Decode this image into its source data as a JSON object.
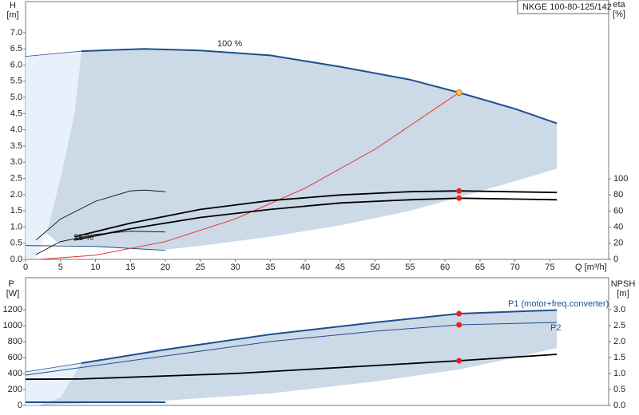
{
  "chart_data": [
    {
      "type": "line",
      "title": "NKGE 100-80-125/142",
      "y_label": "H",
      "y_unit": "[m]",
      "y2_label": "eta",
      "y2_unit": "[%]",
      "x_label": "Q [m³/h]",
      "annotations": [
        "100 %",
        "25 %"
      ],
      "xlim": [
        0,
        83.4
      ],
      "xticks": [
        0,
        5,
        10,
        15,
        20,
        25,
        30,
        35,
        40,
        45,
        50,
        55,
        60,
        65,
        70,
        75
      ],
      "ylim": [
        0,
        7.96
      ],
      "yticks": [
        {
          "value": 0,
          "label": "0.0"
        },
        {
          "value": 0.5,
          "label": "0.5"
        },
        {
          "value": 1,
          "label": "1.0"
        },
        {
          "value": 1.5,
          "label": "1.5"
        },
        {
          "value": 2,
          "label": "2.0"
        },
        {
          "value": 2.5,
          "label": "2.5"
        },
        {
          "value": 3,
          "label": "3.0"
        },
        {
          "value": 3.5,
          "label": "3.5"
        },
        {
          "value": 4,
          "label": "4.0"
        },
        {
          "value": 4.5,
          "label": "4.5"
        },
        {
          "value": 5,
          "label": "5.0"
        },
        {
          "value": 5.5,
          "label": "5.5"
        },
        {
          "value": 6,
          "label": "6.0"
        },
        {
          "value": 6.5,
          "label": "6.5"
        },
        {
          "value": 7,
          "label": "7.0"
        }
      ],
      "y2lim": [
        0,
        320
      ],
      "y2ticks": [
        0,
        20,
        40,
        60,
        80,
        100
      ],
      "series": [
        {
          "kind": "area",
          "color": "#e8f1fb",
          "x": [
            0,
            8,
            7,
            5,
            3,
            1.5,
            0
          ],
          "values": [
            6.27,
            6.43,
            4.5,
            2.5,
            0.8,
            0.05,
            0
          ]
        },
        {
          "kind": "area",
          "color": "#ccd9e6",
          "x": [
            8,
            17,
            25,
            35,
            45,
            55,
            62,
            70,
            76,
            76,
            65,
            55,
            45,
            35,
            25,
            20,
            10,
            5,
            3,
            5,
            7
          ],
          "values": [
            6.43,
            6.5,
            6.45,
            6.3,
            5.95,
            5.55,
            5.15,
            4.65,
            4.2,
            2.8,
            2.1,
            1.5,
            1.05,
            0.7,
            0.42,
            0.3,
            0.4,
            0.45,
            0.8,
            2.5,
            4.5
          ]
        },
        {
          "kind": "line",
          "color": "#1f4f8f",
          "width": 0.8,
          "x": [
            0,
            8
          ],
          "values": [
            6.27,
            6.43
          ]
        },
        {
          "kind": "line",
          "color": "#1f4f8f",
          "width": 2,
          "x": [
            8,
            17,
            25,
            35,
            45,
            55,
            62,
            70,
            76
          ],
          "values": [
            6.43,
            6.5,
            6.45,
            6.3,
            5.95,
            5.55,
            5.15,
            4.65,
            4.2
          ]
        },
        {
          "kind": "line",
          "color": "#1f4f8f",
          "width": 1,
          "x": [
            0,
            10,
            20
          ],
          "values": [
            0.43,
            0.4,
            0.28
          ]
        },
        {
          "kind": "line",
          "color": "#e83030",
          "width": 1,
          "x": [
            2,
            10,
            20,
            30,
            40,
            50,
            62
          ],
          "values": [
            0,
            0.13,
            0.55,
            1.25,
            2.2,
            3.4,
            5.15
          ]
        },
        {
          "kind": "line",
          "color": "#000000",
          "width": 0.8,
          "axis": "y2",
          "x": [
            1.5,
            5,
            10,
            15,
            17,
            20
          ],
          "values": [
            24,
            50,
            72,
            85,
            86,
            84
          ]
        },
        {
          "kind": "line",
          "color": "#000000",
          "width": 0.8,
          "axis": "y2",
          "x": [
            1.5,
            5,
            10,
            15,
            20
          ],
          "values": [
            6,
            22,
            31,
            35,
            34
          ]
        },
        {
          "kind": "line",
          "color": "#000000",
          "width": 1.8,
          "axis": "y2",
          "x": [
            7,
            15,
            25,
            35,
            45,
            55,
            62,
            76
          ],
          "values": [
            28,
            45,
            62,
            73,
            80,
            84,
            85,
            83
          ]
        },
        {
          "kind": "line",
          "color": "#000000",
          "width": 1.8,
          "axis": "y2",
          "x": [
            7,
            15,
            25,
            35,
            45,
            55,
            62,
            76
          ],
          "values": [
            24,
            38,
            52,
            62,
            70,
            74,
            76,
            74
          ]
        },
        {
          "kind": "points",
          "color": "#e82020",
          "axis": "y2",
          "x": [
            62,
            62
          ],
          "values": [
            85,
            76
          ]
        },
        {
          "kind": "points",
          "color": "#f7d24a",
          "x": [
            62
          ],
          "values": [
            5.15
          ]
        }
      ]
    },
    {
      "type": "line",
      "y_label": "P",
      "y_unit": "[W]",
      "y2_label": "NPSH",
      "y2_unit": "[m]",
      "annotations": [
        "P1 (motor+freq.converter)",
        "P2"
      ],
      "xlim": [
        0,
        83.4
      ],
      "ylim": [
        0,
        1600
      ],
      "yticks": [
        0,
        200,
        400,
        600,
        800,
        1000,
        1200
      ],
      "y2lim": [
        0,
        4
      ],
      "y2ticks": [
        {
          "value": 0,
          "label": "0.0"
        },
        {
          "value": 0.5,
          "label": "0.5"
        },
        {
          "value": 1,
          "label": "1.0"
        },
        {
          "value": 1.5,
          "label": "1.5"
        },
        {
          "value": 2,
          "label": "2.0"
        },
        {
          "value": 2.5,
          "label": "2.5"
        },
        {
          "value": 3,
          "label": "3.0"
        }
      ],
      "series": [
        {
          "kind": "area",
          "color": "#e8f1fb",
          "x": [
            0,
            8,
            5,
            2,
            0
          ],
          "values": [
            420,
            530,
            100,
            0,
            0
          ]
        },
        {
          "kind": "area",
          "color": "#ccd9e6",
          "x": [
            8,
            20,
            35,
            50,
            62,
            76,
            76,
            70,
            62,
            50,
            35,
            20,
            10,
            3,
            2,
            5
          ],
          "values": [
            530,
            700,
            890,
            1040,
            1150,
            1195,
            720,
            600,
            450,
            300,
            150,
            60,
            30,
            10,
            0,
            100
          ]
        },
        {
          "kind": "line",
          "color": "#1f4f8f",
          "width": 0.8,
          "x": [
            0,
            8
          ],
          "values": [
            420,
            530
          ]
        },
        {
          "kind": "line",
          "color": "#1f4f8f",
          "width": 2,
          "x": [
            8,
            20,
            35,
            50,
            62,
            76
          ],
          "values": [
            530,
            700,
            890,
            1040,
            1150,
            1195
          ]
        },
        {
          "kind": "line",
          "color": "#1f4f8f",
          "width": 1,
          "x": [
            0,
            20,
            35,
            50,
            62,
            76
          ],
          "values": [
            380,
            620,
            800,
            930,
            1010,
            1040
          ]
        },
        {
          "kind": "line",
          "color": "#1f4f8f",
          "width": 2,
          "x": [
            0,
            20
          ],
          "values": [
            40,
            40
          ]
        },
        {
          "kind": "line",
          "color": "#000000",
          "width": 1.8,
          "axis": "y2",
          "x": [
            0,
            8,
            30,
            50,
            62,
            76
          ],
          "values": [
            0.82,
            0.83,
            1.0,
            1.25,
            1.4,
            1.6
          ]
        },
        {
          "kind": "points",
          "color": "#e82020",
          "x": [
            62,
            62
          ],
          "values": [
            1150,
            1010
          ]
        },
        {
          "kind": "points",
          "color": "#e82020",
          "axis": "y2",
          "x": [
            62
          ],
          "values": [
            1.4
          ]
        }
      ]
    }
  ]
}
